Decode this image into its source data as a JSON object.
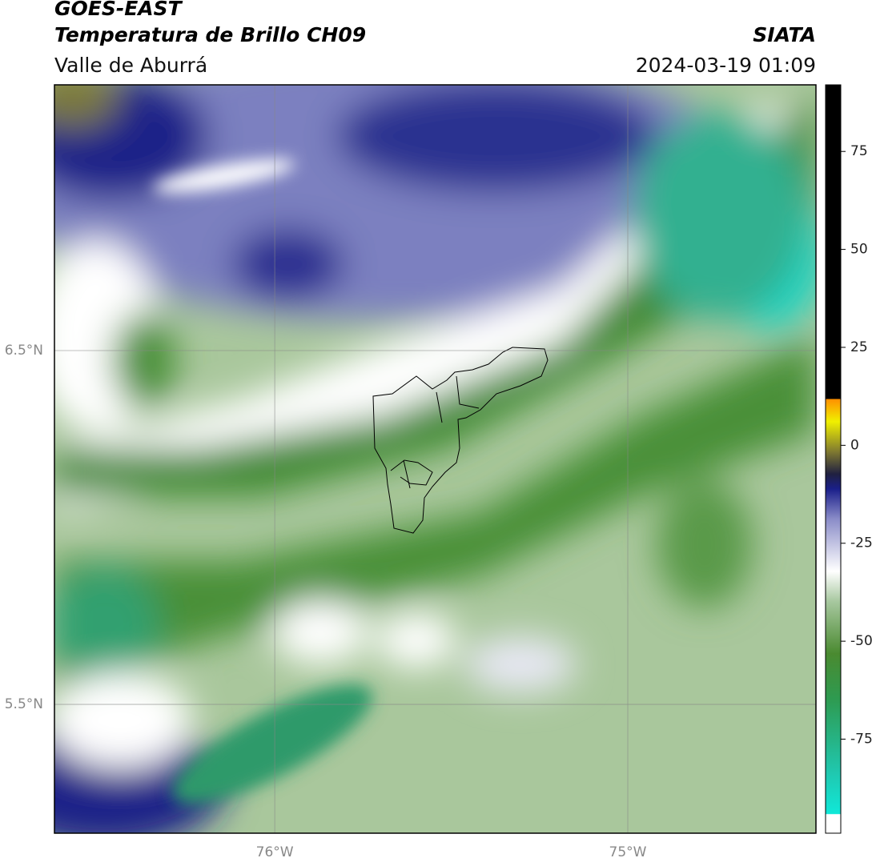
{
  "header": {
    "title": "GOES-EAST",
    "subtitle": "Temperatura de Brillo CH09",
    "region": "Valle de Aburrá",
    "source": "SIATA",
    "datetime": "2024-03-19 01:09"
  },
  "map": {
    "xlim": [
      -76.624,
      -74.467
    ],
    "ylim": [
      5.136,
      7.251
    ],
    "xticks": [
      {
        "value": -76,
        "label": "76°W"
      },
      {
        "value": -75,
        "label": "75°W"
      }
    ],
    "yticks": [
      {
        "value": 6.5,
        "label": "6.5°N"
      },
      {
        "value": 5.5,
        "label": "5.5°N"
      }
    ],
    "grid": true
  },
  "colorbar": {
    "lim": [
      -99,
      92
    ],
    "ticks": [
      75,
      50,
      25,
      0,
      -25,
      -50,
      -75
    ]
  }
}
